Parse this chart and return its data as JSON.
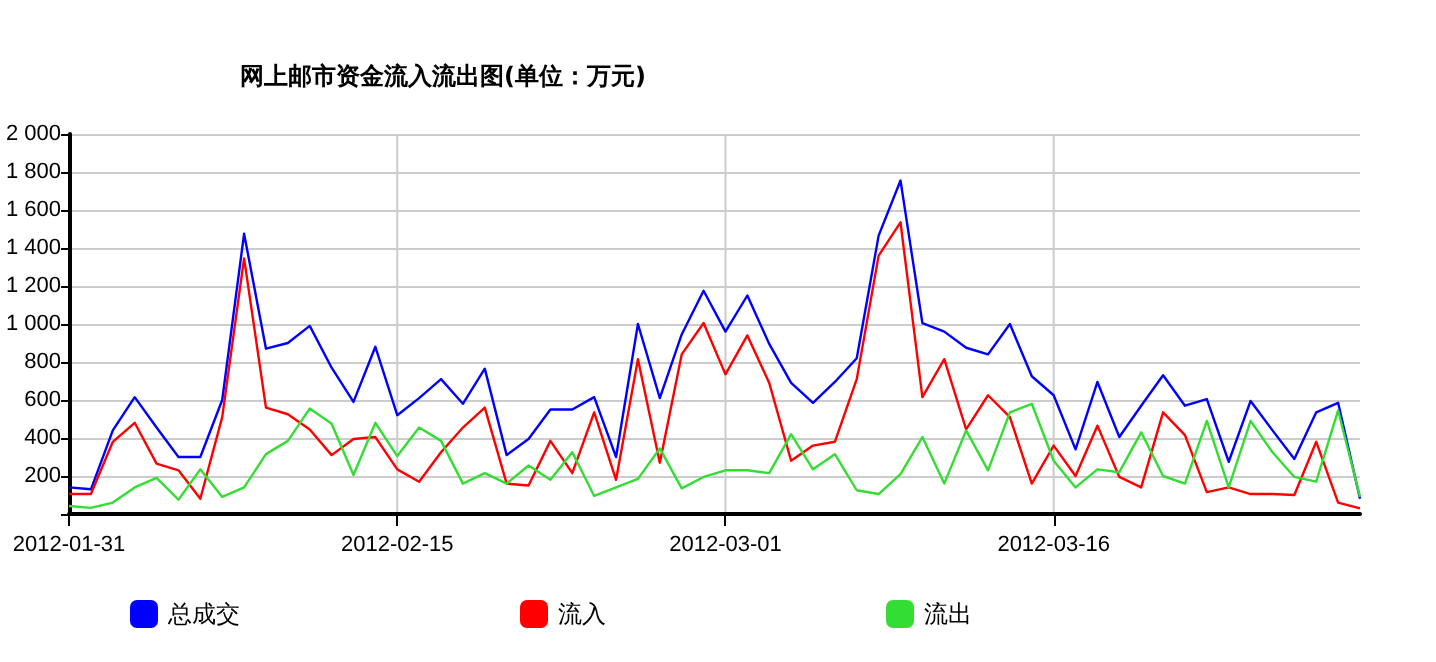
{
  "chart_data": {
    "type": "line",
    "title": "网上邮市资金流入流出图(单位：万元)",
    "x": [
      "2012-01-31",
      "2012-02-01",
      "2012-02-02",
      "2012-02-03",
      "2012-02-04",
      "2012-02-05",
      "2012-02-06",
      "2012-02-07",
      "2012-02-08",
      "2012-02-09",
      "2012-02-10",
      "2012-02-11",
      "2012-02-12",
      "2012-02-13",
      "2012-02-14",
      "2012-02-15",
      "2012-02-16",
      "2012-02-17",
      "2012-02-18",
      "2012-02-19",
      "2012-02-20",
      "2012-02-21",
      "2012-02-22",
      "2012-02-23",
      "2012-02-24",
      "2012-02-25",
      "2012-02-26",
      "2012-02-27",
      "2012-02-28",
      "2012-02-29",
      "2012-03-01",
      "2012-03-02",
      "2012-03-03",
      "2012-03-04",
      "2012-03-05",
      "2012-03-06",
      "2012-03-07",
      "2012-03-08",
      "2012-03-09",
      "2012-03-10",
      "2012-03-11",
      "2012-03-12",
      "2012-03-13",
      "2012-03-14",
      "2012-03-15",
      "2012-03-16",
      "2012-03-17",
      "2012-03-18",
      "2012-03-19",
      "2012-03-20",
      "2012-03-21",
      "2012-03-22",
      "2012-03-23",
      "2012-03-24",
      "2012-03-25",
      "2012-03-26",
      "2012-03-27",
      "2012-03-28",
      "2012-03-29",
      "2012-03-30"
    ],
    "series": [
      {
        "name": "总成交",
        "color": "#0000ff",
        "values": [
          140,
          130,
          440,
          615,
          455,
          300,
          300,
          600,
          1475,
          870,
          900,
          990,
          770,
          590,
          880,
          520,
          610,
          710,
          580,
          765,
          310,
          395,
          550,
          550,
          615,
          300,
          1000,
          610,
          945,
          1175,
          960,
          1150,
          895,
          690,
          585,
          695,
          820,
          1465,
          1755,
          1005,
          960,
          875,
          840,
          1000,
          725,
          625,
          340,
          695,
          405,
          570,
          730,
          570,
          605,
          275,
          595,
          440,
          290,
          535,
          585,
          80
        ]
      },
      {
        "name": "流入",
        "color": "#ff0000",
        "values": [
          105,
          105,
          380,
          480,
          265,
          230,
          80,
          510,
          1345,
          560,
          525,
          445,
          310,
          395,
          405,
          235,
          170,
          325,
          455,
          560,
          160,
          150,
          385,
          215,
          535,
          180,
          815,
          270,
          840,
          1005,
          735,
          940,
          690,
          280,
          360,
          380,
          710,
          1360,
          1535,
          615,
          815,
          445,
          625,
          510,
          160,
          360,
          200,
          465,
          195,
          140,
          535,
          415,
          115,
          140,
          105,
          105,
          100,
          380,
          60,
          30
        ]
      },
      {
        "name": "流出",
        "color": "#33dd33",
        "values": [
          42,
          32,
          60,
          140,
          190,
          75,
          235,
          90,
          140,
          315,
          385,
          555,
          475,
          205,
          480,
          305,
          455,
          385,
          160,
          215,
          160,
          255,
          180,
          325,
          95,
          140,
          185,
          345,
          135,
          195,
          230,
          230,
          215,
          420,
          235,
          315,
          125,
          105,
          210,
          405,
          160,
          440,
          230,
          535,
          580,
          280,
          140,
          235,
          220,
          430,
          200,
          160,
          490,
          140,
          490,
          325,
          195,
          170,
          545,
          90
        ]
      }
    ],
    "xlim": [
      "2012-01-31",
      "2012-03-30"
    ],
    "xticks": [
      "2012-01-31",
      "2012-02-15",
      "2012-03-01",
      "2012-03-16"
    ],
    "ylim": [
      0,
      2000
    ],
    "yticks": [
      {
        "value": 0,
        "label": null
      },
      200,
      400,
      600,
      800,
      {
        "value": 1000,
        "label": "1 000"
      },
      {
        "value": 1200,
        "label": "1 200"
      },
      {
        "value": 1400,
        "label": "1 400"
      },
      {
        "value": 1600,
        "label": "1 600"
      },
      {
        "value": 1800,
        "label": "1 800"
      },
      {
        "value": 2000,
        "label": "2 000"
      }
    ],
    "grid": true,
    "legend": "bottom",
    "marker": "none",
    "line_style": "solid"
  }
}
